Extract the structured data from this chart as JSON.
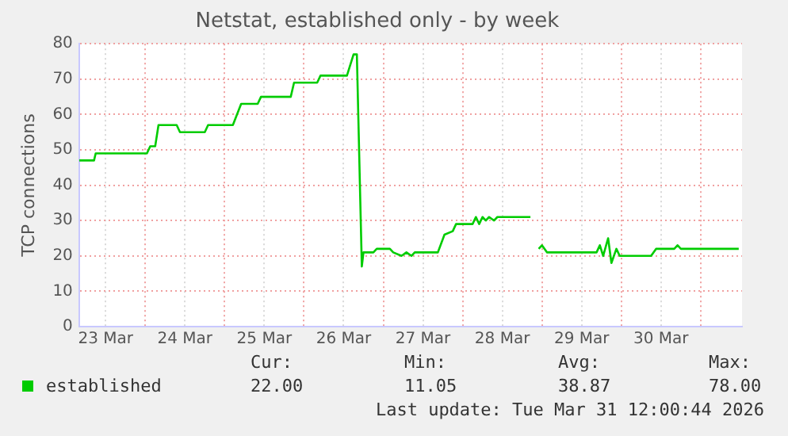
{
  "chart_data": {
    "type": "line",
    "title": "Netstat, established only - by week",
    "ylabel": "TCP connections",
    "x": [
      "2026-03-23T04:00",
      "2026-03-23T08:30",
      "2026-03-23T09:00",
      "2026-03-24T00:30",
      "2026-03-24T01:30",
      "2026-03-24T03:00",
      "2026-03-24T04:00",
      "2026-03-24T09:30",
      "2026-03-24T10:30",
      "2026-03-24T18:00",
      "2026-03-24T19:00",
      "2026-03-25T02:30",
      "2026-03-25T05:00",
      "2026-03-25T10:00",
      "2026-03-25T11:00",
      "2026-03-25T20:00",
      "2026-03-25T21:00",
      "2026-03-26T04:00",
      "2026-03-26T05:00",
      "2026-03-26T13:00",
      "2026-03-26T15:00",
      "2026-03-26T16:00",
      "2026-03-26T17:30",
      "2026-03-26T18:00",
      "2026-03-26T21:00",
      "2026-03-26T22:00",
      "2026-03-27T02:00",
      "2026-03-27T03:00",
      "2026-03-27T05:30",
      "2026-03-27T07:00",
      "2026-03-27T08:30",
      "2026-03-27T09:30",
      "2026-03-27T16:30",
      "2026-03-27T18:30",
      "2026-03-27T21:00",
      "2026-03-27T22:00",
      "2026-03-28T03:00",
      "2026-03-28T04:00",
      "2026-03-28T05:00",
      "2026-03-28T06:00",
      "2026-03-28T07:00",
      "2026-03-28T08:00",
      "2026-03-28T09:30",
      "2026-03-28T10:30",
      "2026-03-28T20:30",
      "2026-03-28T21:30",
      "2026-03-28T23:00",
      "2026-03-29T00:00",
      "2026-03-29T01:30",
      "2026-03-29T16:30",
      "2026-03-29T17:30",
      "2026-03-29T18:30",
      "2026-03-29T20:00",
      "2026-03-29T21:00",
      "2026-03-29T22:30",
      "2026-03-29T23:30",
      "2026-03-30T09:00",
      "2026-03-30T10:30",
      "2026-03-30T16:00",
      "2026-03-30T17:00",
      "2026-03-30T18:00",
      "2026-03-31T11:30"
    ],
    "series": [
      {
        "name": "established",
        "color": "#00cc00",
        "values": [
          47,
          47,
          49,
          49,
          51,
          51,
          57,
          57,
          55,
          55,
          57,
          57,
          63,
          63,
          65,
          65,
          69,
          69,
          71,
          71,
          77,
          77,
          17,
          21,
          21,
          22,
          22,
          21,
          20,
          21,
          20,
          21,
          21,
          26,
          27,
          29,
          29,
          31,
          29,
          31,
          30,
          31,
          30,
          31,
          31,
          null,
          22,
          23,
          21,
          21,
          23,
          20,
          25,
          18,
          22,
          20,
          20,
          22,
          22,
          23,
          22,
          22
        ]
      }
    ],
    "xlim": [
      "2026-03-23T04:00",
      "2026-03-31T12:30"
    ],
    "xticks": [
      {
        "value": "2026-03-23T12:00",
        "label": "23 Mar"
      },
      {
        "value": "2026-03-24T00:00",
        "label": null
      },
      {
        "value": "2026-03-24T12:00",
        "label": "24 Mar"
      },
      {
        "value": "2026-03-25T00:00",
        "label": null
      },
      {
        "value": "2026-03-25T12:00",
        "label": "25 Mar"
      },
      {
        "value": "2026-03-26T00:00",
        "label": null
      },
      {
        "value": "2026-03-26T12:00",
        "label": "26 Mar"
      },
      {
        "value": "2026-03-27T00:00",
        "label": null
      },
      {
        "value": "2026-03-27T12:00",
        "label": "27 Mar"
      },
      {
        "value": "2026-03-28T00:00",
        "label": null
      },
      {
        "value": "2026-03-28T12:00",
        "label": "28 Mar"
      },
      {
        "value": "2026-03-29T00:00",
        "label": null
      },
      {
        "value": "2026-03-29T12:00",
        "label": "29 Mar"
      },
      {
        "value": "2026-03-30T00:00",
        "label": null
      },
      {
        "value": "2026-03-30T12:00",
        "label": "30 Mar"
      },
      {
        "value": "2026-03-31T00:00",
        "label": null
      }
    ],
    "ylim": [
      0,
      80
    ],
    "yticks": [
      0,
      10,
      20,
      30,
      40,
      50,
      60,
      70,
      80
    ],
    "grid": true,
    "legend": "bottom left",
    "marker": "none",
    "line_style": "solid",
    "annotations": [
      "Cur:",
      "22.00",
      "Min:",
      "11.05",
      "Avg:",
      "38.87",
      "Max:",
      "78.00",
      "Last update: Tue Mar 31 12:00:44 2026"
    ]
  }
}
